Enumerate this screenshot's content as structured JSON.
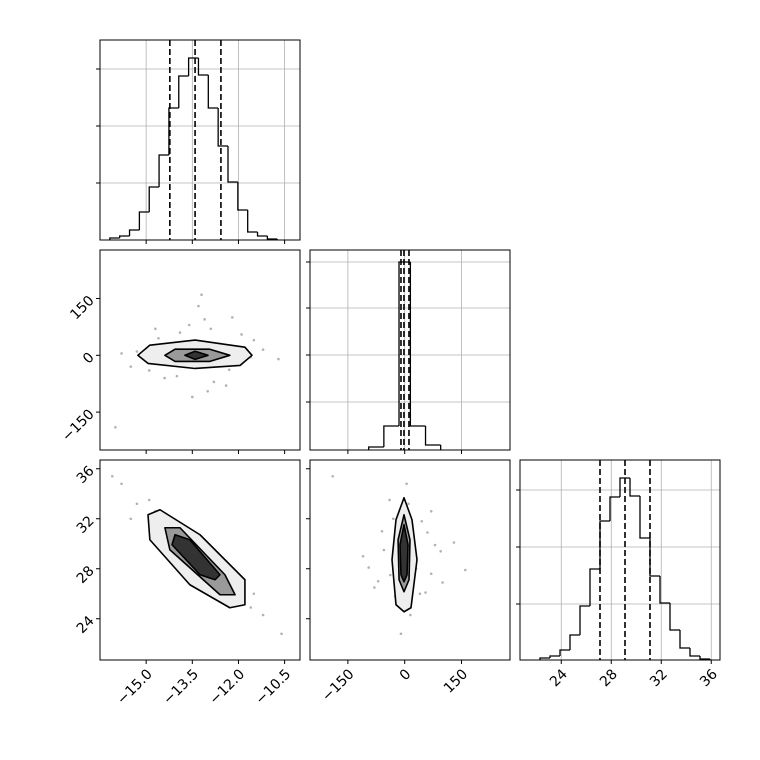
{
  "chart_data": {
    "type": "corner",
    "grid": true,
    "params": [
      {
        "lim": [
          -16.5,
          -10.0
        ],
        "ticks": [
          {
            "value": -15.0,
            "label": "−15.0"
          },
          {
            "value": -13.5,
            "label": "−13.5"
          },
          {
            "value": -12.0,
            "label": "−12.0"
          },
          {
            "value": -10.5,
            "label": "−10.5"
          }
        ]
      },
      {
        "lim": [
          -250,
          278
        ],
        "ticks": [
          {
            "value": -150,
            "label": "−150"
          },
          0,
          150
        ]
      },
      {
        "lim": [
          20.7,
          36.7
        ],
        "ticks": [
          24,
          28,
          32,
          36
        ]
      }
    ],
    "hists": [
      {
        "ylim": [
          0,
          200
        ],
        "yticks": [
          57,
          114,
          171
        ],
        "bins": [
          -16.18,
          -15.86,
          -15.54,
          -15.22,
          -14.9,
          -14.58,
          -14.26,
          -13.94,
          -13.62,
          -13.3,
          -12.98,
          -12.66,
          -12.34,
          -12.02,
          -11.7,
          -11.38,
          -11.06,
          -10.74
        ],
        "counts": [
          2,
          4,
          10,
          28,
          53,
          85,
          132,
          164,
          182,
          165,
          132,
          94,
          58,
          30,
          8,
          4,
          1
        ],
        "quantiles": [
          -14.23,
          -13.41,
          -12.57
        ]
      },
      {
        "ylim": [
          0,
          200
        ],
        "yticks": [
          48,
          95,
          142,
          188
        ],
        "bins": [
          -95,
          -55,
          -15,
          15,
          55,
          95
        ],
        "counts": [
          3,
          24,
          188,
          24,
          5
        ],
        "quantiles": [
          -9.8,
          -1.9,
          11.3
        ]
      },
      {
        "ylim": [
          0,
          200
        ],
        "yticks": [
          56,
          113,
          170
        ],
        "bins": [
          22.3,
          23.1,
          23.9,
          24.7,
          25.5,
          26.3,
          27.1,
          27.9,
          28.7,
          29.5,
          30.3,
          31.1,
          31.9,
          32.7,
          33.5,
          34.3,
          35.1,
          35.9
        ],
        "counts": [
          2,
          4,
          10,
          25,
          54,
          91,
          139,
          163,
          182,
          164,
          122,
          84,
          57,
          30,
          12,
          4,
          1
        ],
        "quantiles": [
          27.1,
          29.1,
          31.1
        ]
      }
    ],
    "pairs": [
      {
        "x": [
          -14.6,
          -12.3,
          -13.9,
          -12.8,
          -14.2,
          -13.1,
          -12.1,
          -15.3,
          -11.6,
          -13.5,
          -14.9,
          -12.6,
          -13.7,
          -11.9,
          -14.4,
          -13.0,
          -15.8,
          -11.2,
          -13.3,
          -12.9,
          -14.0,
          -12.4,
          -15.5,
          -11.5,
          -13.6,
          -16.0,
          -10.7,
          -13.2,
          -14.7,
          -12.2
        ],
        "y": [
          45,
          -38,
          60,
          -70,
          20,
          95,
          -25,
          10,
          -5,
          -110,
          -40,
          30,
          -15,
          55,
          -60,
          -95,
          5,
          15,
          130,
          70,
          -55,
          -80,
          -30,
          40,
          80,
          -190,
          -10,
          160,
          70,
          100
        ],
        "contours": [
          {
            "x": [
              -15.27,
              -14.88,
              -13.41,
              -11.79,
              -11.56,
              -11.95,
              -13.41,
              -14.94
            ],
            "y": [
              0,
              26.8,
              40.2,
              21.4,
              0,
              -26.8,
              -34.8,
              -21.4
            ]
          },
          {
            "x": [
              -14.39,
              -14.06,
              -12.93,
              -12.28,
              -12.93,
              -14.06
            ],
            "y": [
              0,
              16.1,
              16.1,
              0,
              -16.1,
              -16.1
            ]
          },
          {
            "x": [
              -13.74,
              -13.41,
              -12.99,
              -13.41
            ],
            "y": [
              0,
              10.7,
              0,
              -10.7
            ]
          }
        ]
      },
      {
        "x": [
          -14.6,
          -12.3,
          -13.9,
          -12.8,
          -14.2,
          -13.1,
          -12.1,
          -15.3,
          -11.6,
          -13.5,
          -14.9,
          -12.6,
          -13.7,
          -11.9,
          -14.4,
          -13.0,
          -15.8,
          -11.2,
          -13.3,
          -12.9,
          -14.0,
          -12.4,
          -15.5,
          -11.5,
          -13.6,
          -16.1,
          -10.6,
          -13.2,
          -14.7,
          -12.2
        ],
        "y": [
          31.8,
          27.5,
          30.9,
          27.0,
          30.3,
          29.4,
          25.8,
          33.2,
          24.9,
          29.0,
          33.5,
          28.0,
          28.8,
          26.1,
          31.0,
          28.1,
          34.8,
          24.3,
          30.1,
          27.6,
          29.5,
          26.5,
          32.0,
          26.0,
          29.9,
          35.4,
          22.8,
          27.9,
          32.6,
          26.9
        ],
        "contours": [
          {
            "x": [
              -14.94,
              -14.55,
              -13.25,
              -11.79,
              -11.79,
              -12.28,
              -13.58,
              -14.88
            ],
            "y": [
              32.32,
              32.72,
              30.72,
              27.12,
              25.12,
              24.88,
              26.72,
              30.32
            ]
          },
          {
            "x": [
              -14.39,
              -13.9,
              -12.44,
              -12.11,
              -12.6,
              -14.23
            ],
            "y": [
              31.28,
              31.28,
              27.52,
              25.92,
              25.92,
              29.52
            ]
          },
          {
            "x": [
              -14.06,
              -13.58,
              -12.6,
              -12.76,
              -13.25,
              -14.16
            ],
            "y": [
              30.72,
              30.32,
              27.52,
              27.12,
              27.52,
              29.92
            ]
          }
        ]
      },
      {
        "x": [
          45,
          -38,
          60,
          -70,
          20,
          95,
          -25,
          10,
          -5,
          -110,
          -40,
          30,
          -15,
          55,
          -60,
          -95,
          5,
          15,
          130,
          70,
          -55,
          -80,
          -30,
          40,
          80,
          -190,
          -10,
          160,
          70,
          100
        ],
        "y": [
          31.8,
          27.5,
          30.9,
          27.0,
          30.3,
          29.4,
          25.8,
          33.2,
          24.9,
          29.0,
          33.5,
          28.0,
          28.8,
          26.1,
          31.0,
          28.1,
          34.8,
          24.3,
          30.1,
          27.6,
          29.5,
          26.5,
          32.0,
          26.0,
          29.9,
          35.4,
          22.8,
          27.9,
          32.6,
          26.9
        ],
        "contours": [
          {
            "x": [
              -1.8,
              19.3,
              32.5,
              16.6,
              -1.8,
              -23,
              -33.5,
              -23
            ],
            "y": [
              33.68,
              31.92,
              28.72,
              24.88,
              24.56,
              25.12,
              28.72,
              31.92
            ]
          },
          {
            "x": [
              -1.8,
              14,
              11.4,
              -1.8,
              -14.9,
              -17.5
            ],
            "y": [
              32.32,
              30.32,
              27.12,
              26.16,
              27.12,
              30.32
            ]
          },
          {
            "x": [
              -1.8,
              8.8,
              6.1,
              -1.8,
              -9.8,
              -12.4
            ],
            "y": [
              31.52,
              29.92,
              27.52,
              26.96,
              27.52,
              29.92
            ]
          }
        ]
      }
    ]
  }
}
